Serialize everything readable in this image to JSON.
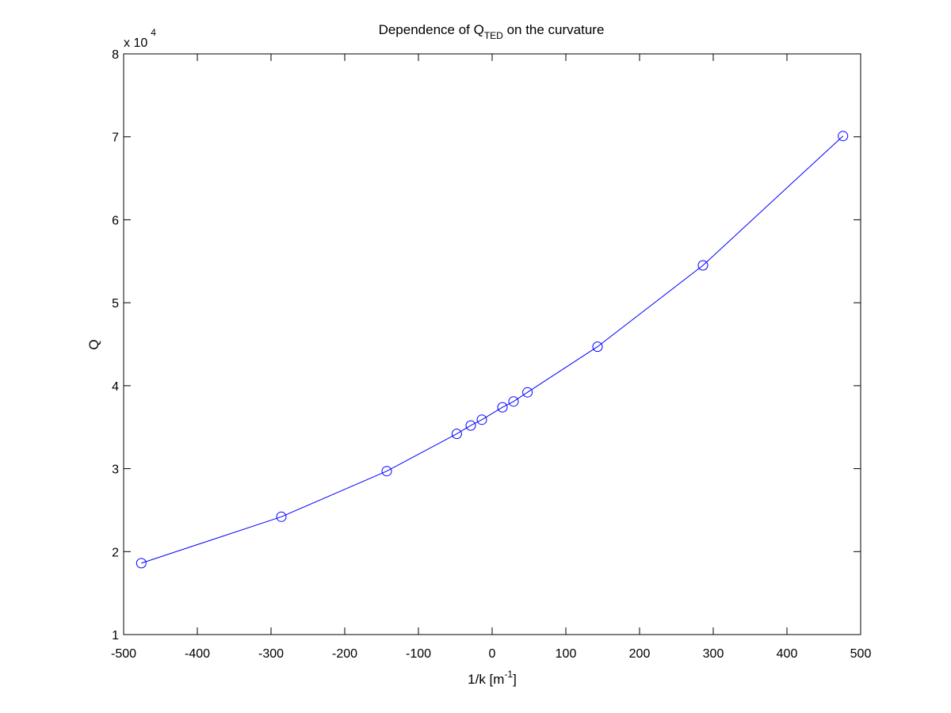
{
  "chart_data": {
    "type": "line",
    "title": {
      "main": "Dependence of Q",
      "subscript": "TED",
      "tail": " on the curvature"
    },
    "xlabel": {
      "main": "1/k [m",
      "superscript": "-1",
      "tail": "]"
    },
    "ylabel": "Q",
    "y_multiplier": {
      "main": "x 10",
      "superscript": "4"
    },
    "xlim": [
      -500,
      500
    ],
    "ylim": [
      1,
      8
    ],
    "x_ticks": [
      -500,
      -400,
      -300,
      -200,
      -100,
      0,
      100,
      200,
      300,
      400,
      500
    ],
    "y_ticks": [
      1,
      2,
      3,
      4,
      5,
      6,
      7,
      8
    ],
    "x_tick_labels": [
      "-500",
      "-400",
      "-300",
      "-200",
      "-100",
      "0",
      "100",
      "200",
      "300",
      "400",
      "500"
    ],
    "y_tick_labels": [
      "1",
      "2",
      "3",
      "4",
      "5",
      "6",
      "7",
      "8"
    ],
    "grid": false,
    "marker": "circle",
    "line_color": "#0000ff",
    "series": [
      {
        "x": [
          -476,
          -286,
          -143,
          -48,
          -29,
          -14,
          14,
          29,
          48,
          143,
          286,
          476
        ],
        "y": [
          1.86,
          2.42,
          2.97,
          3.42,
          3.52,
          3.59,
          3.74,
          3.81,
          3.92,
          4.47,
          5.45,
          7.01
        ]
      }
    ]
  }
}
